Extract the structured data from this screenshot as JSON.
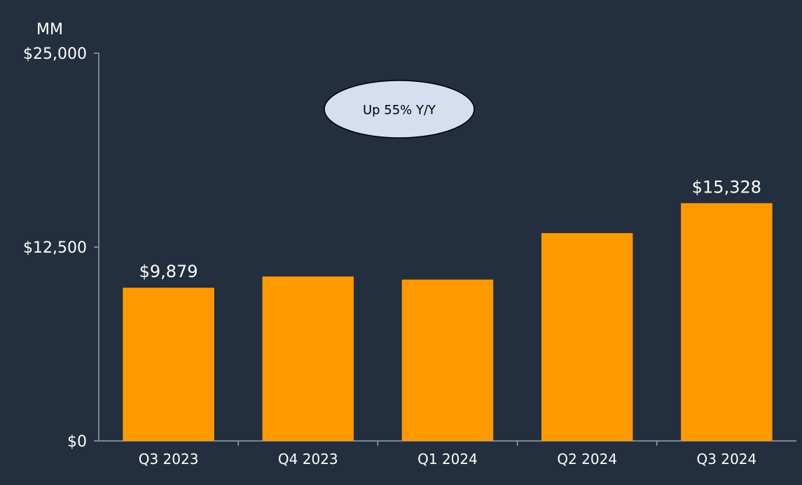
{
  "chart_data": {
    "type": "bar",
    "unit_label": "MM",
    "categories": [
      "Q3 2023",
      "Q4 2023",
      "Q1 2024",
      "Q2 2024",
      "Q3 2024"
    ],
    "values": [
      9879,
      10600,
      10400,
      13400,
      15328
    ],
    "data_labels": [
      "$9,879",
      "",
      "",
      "",
      "$15,328"
    ],
    "ylim": [
      0,
      25000
    ],
    "yticks": [
      0,
      12500,
      25000
    ],
    "ytick_labels": [
      "$0",
      "$12,500",
      "$25,000"
    ],
    "bar_color": "#ff9900",
    "background_color": "#232f3e",
    "axis_color": "#9aa3ad",
    "grid": false,
    "annotation": {
      "text": "Up 55% Y/Y",
      "fill": "#d5dff0"
    }
  }
}
